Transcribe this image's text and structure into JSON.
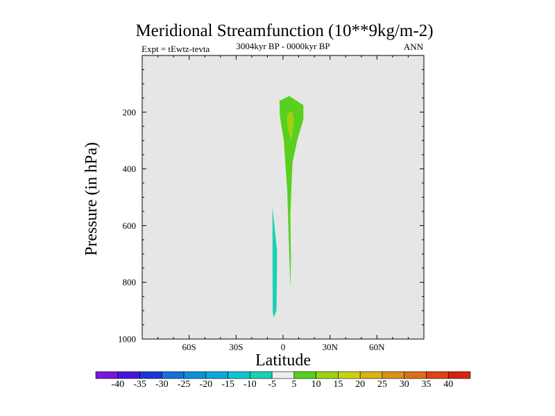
{
  "chart_data": {
    "type": "contour",
    "title": "Meridional Streamfunction (10**9kg/m-2)",
    "experiment": "Expt = tEwtz-tevta",
    "period": "3004kyr BP - 0000kyr BP",
    "season": "ANN",
    "xlabel": "Latitude",
    "ylabel": "Pressure (in hPa)",
    "xlim": [
      -90,
      90
    ],
    "ylim": [
      0,
      1000
    ],
    "y_inverted": true,
    "x_ticks": [
      {
        "value": -60,
        "label": "60S"
      },
      {
        "value": -30,
        "label": "30S"
      },
      {
        "value": 0,
        "label": "0"
      },
      {
        "value": 30,
        "label": "30N"
      },
      {
        "value": 60,
        "label": "60N"
      }
    ],
    "y_ticks": [
      {
        "value": 200,
        "label": "200"
      },
      {
        "value": 400,
        "label": "400"
      },
      {
        "value": 600,
        "label": "600"
      },
      {
        "value": 800,
        "label": "800"
      },
      {
        "value": 1000,
        "label": "1000"
      }
    ],
    "background_color": "#e6e6e6",
    "contour_regions": [
      {
        "name": "positive-cell",
        "level": "5 to 10",
        "color": "#57d01e",
        "points": [
          [
            -2.3,
            160
          ],
          [
            4,
            143
          ],
          [
            13,
            175
          ],
          [
            13,
            225
          ],
          [
            9,
            300
          ],
          [
            6,
            380
          ],
          [
            4.7,
            560
          ],
          [
            5,
            720
          ],
          [
            4.7,
            820
          ],
          [
            3.6,
            640
          ],
          [
            2.7,
            480
          ],
          [
            0.5,
            300
          ],
          [
            -2,
            215
          ],
          [
            -2.3,
            160
          ]
        ]
      },
      {
        "name": "positive-cell-core",
        "level": "10 to 15",
        "color": "#9ed212",
        "points": [
          [
            3,
            205
          ],
          [
            6,
            195
          ],
          [
            7,
            228
          ],
          [
            5.5,
            300
          ],
          [
            3,
            262
          ],
          [
            2.5,
            225
          ],
          [
            3,
            205
          ]
        ]
      },
      {
        "name": "negative-cell",
        "level": "-10 to -5",
        "color": "#1ad2b0",
        "points": [
          [
            -6.8,
            535
          ],
          [
            -5.5,
            600
          ],
          [
            -3.8,
            690
          ],
          [
            -3.9,
            780
          ],
          [
            -4.2,
            900
          ],
          [
            -6,
            925
          ],
          [
            -6.6,
            905
          ],
          [
            -6.7,
            800
          ],
          [
            -6.8,
            535
          ]
        ]
      }
    ],
    "colorbar": {
      "levels": [
        -40,
        -35,
        -30,
        -25,
        -20,
        -15,
        -10,
        -5,
        5,
        10,
        15,
        20,
        25,
        30,
        35,
        40
      ],
      "colors": [
        "#7a16da",
        "#4a14d6",
        "#1c36d4",
        "#1570d8",
        "#0f8edb",
        "#0ca8dc",
        "#11c4cf",
        "#1ad2b0",
        "#ececec",
        "#57d01e",
        "#9ed212",
        "#c8d212",
        "#d6b414",
        "#da9216",
        "#dd6e17",
        "#df4316",
        "#d6250f"
      ]
    }
  }
}
